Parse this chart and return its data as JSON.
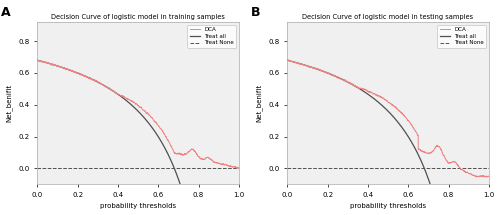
{
  "title_A": "Decision Curve of logistic model in training samples",
  "title_B": "Decision Curve of logistic model in testing samples",
  "xlabel": "probability thresholds",
  "ylabel": "Net_benifit",
  "label_A": "A",
  "label_B": "B",
  "legend_DCA": "DCA",
  "legend_treat_all": "Treat all",
  "legend_treat_none": "Treat None",
  "dca_color": "#f08080",
  "treat_all_color": "#505050",
  "treat_none_color": "#505050",
  "prevalence_A": 0.68,
  "prevalence_B": 0.68,
  "bg_color": "#f0f0f0",
  "ylim": [
    -0.1,
    0.92
  ],
  "xlim": [
    0.0,
    1.0
  ],
  "yticks": [
    0.0,
    0.2,
    0.4,
    0.6,
    0.8
  ],
  "xticks": [
    0.0,
    0.2,
    0.4,
    0.6,
    0.8,
    1.0
  ]
}
